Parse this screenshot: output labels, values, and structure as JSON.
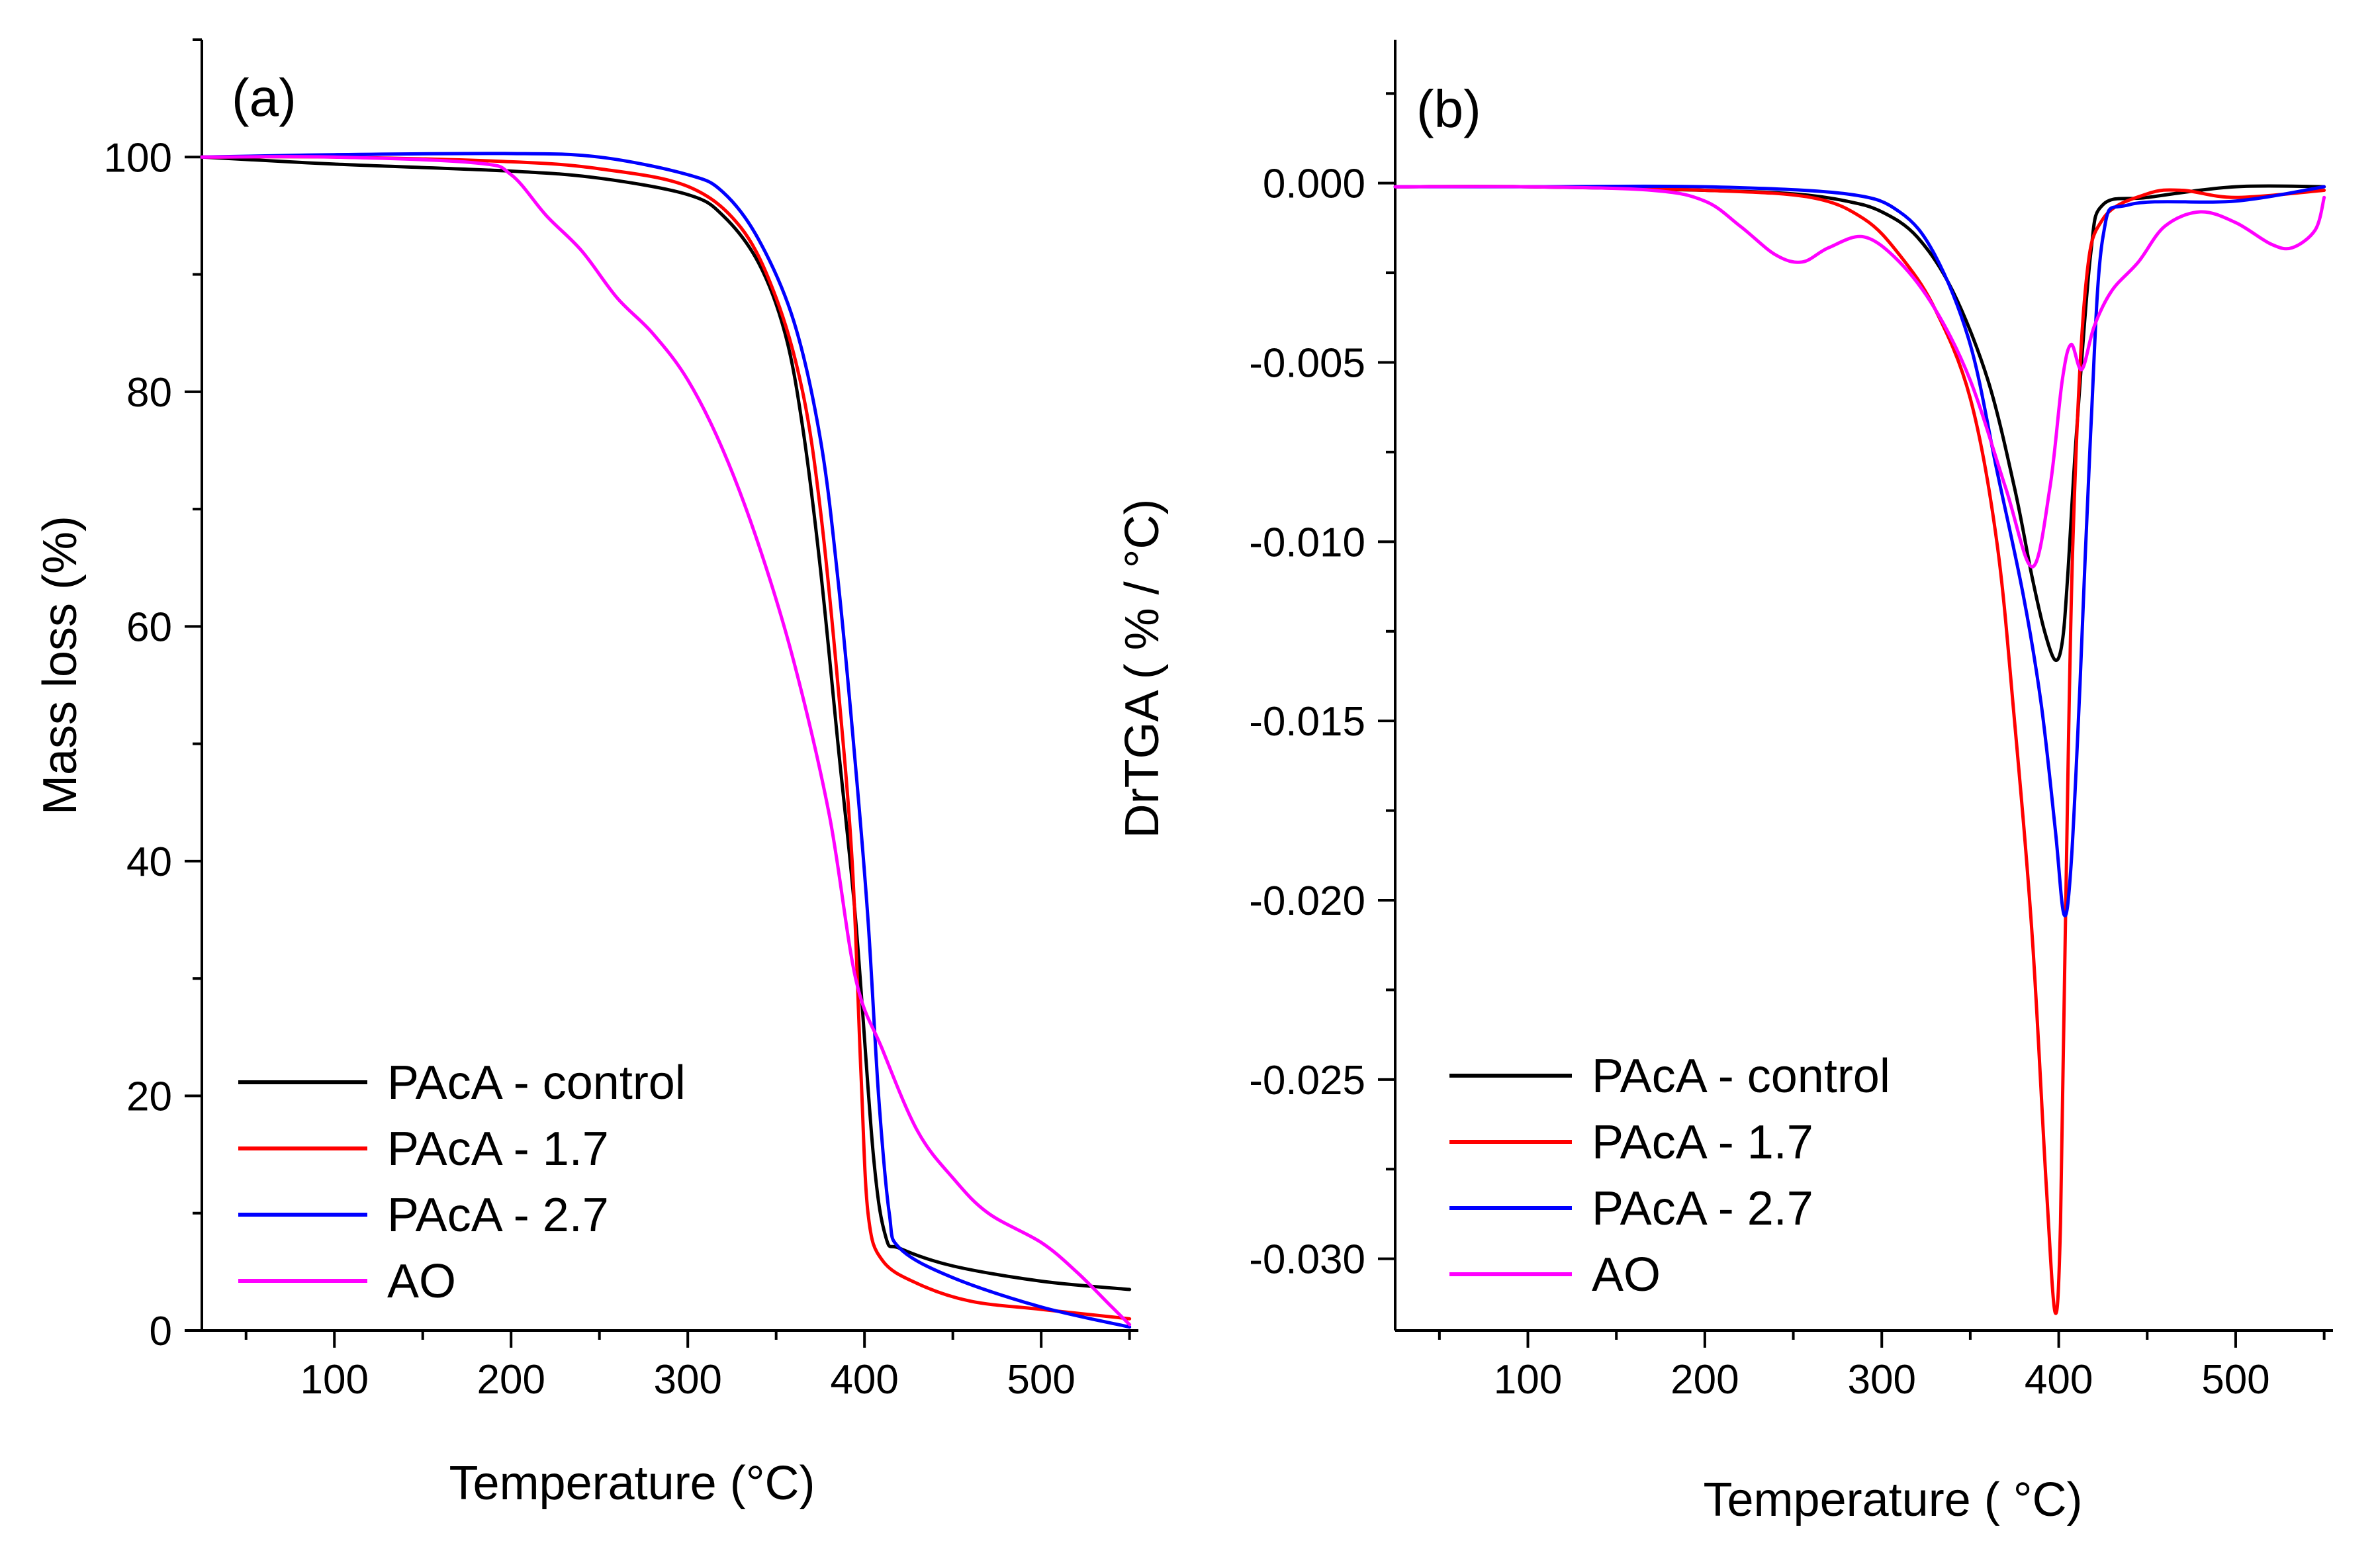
{
  "colors": {
    "PAcA - control": "#000000",
    "PAcA - 1.7": "#ff0000",
    "PAcA - 2.7": "#0000ff",
    "AO": "#ff00ff"
  },
  "chart_data": [
    {
      "type": "line",
      "panel_label": "(a)",
      "title": "",
      "xlabel": "Temperature (°C)",
      "ylabel": "Mass loss (%)",
      "xlim": [
        25,
        555
      ],
      "ylim": [
        0,
        110
      ],
      "xticks": [
        100,
        200,
        300,
        400,
        500
      ],
      "yticks": [
        0,
        20,
        40,
        60,
        80,
        100
      ],
      "x_minor_step": 50,
      "y_minor_step": 10,
      "grid": false,
      "legend_position": "bottom-left",
      "series": [
        {
          "name": "PAcA - control",
          "points": [
            [
              25,
              100
            ],
            [
              100,
              99.4
            ],
            [
              200,
              98.8
            ],
            [
              250,
              98.2
            ],
            [
              300,
              96.8
            ],
            [
              320,
              95
            ],
            [
              340,
              91
            ],
            [
              355,
              85
            ],
            [
              365,
              77
            ],
            [
              375,
              65
            ],
            [
              385,
              50
            ],
            [
              395,
              35
            ],
            [
              405,
              15
            ],
            [
              412,
              8
            ],
            [
              420,
              7
            ],
            [
              450,
              5.5
            ],
            [
              500,
              4.2
            ],
            [
              550,
              3.5
            ]
          ]
        },
        {
          "name": "PAcA - 1.7",
          "points": [
            [
              25,
              100
            ],
            [
              100,
              100
            ],
            [
              200,
              99.6
            ],
            [
              250,
              99
            ],
            [
              300,
              97.5
            ],
            [
              330,
              94
            ],
            [
              350,
              88
            ],
            [
              365,
              80
            ],
            [
              375,
              70
            ],
            [
              385,
              55
            ],
            [
              393,
              40
            ],
            [
              398,
              22
            ],
            [
              402,
              10
            ],
            [
              410,
              6
            ],
            [
              430,
              4
            ],
            [
              460,
              2.5
            ],
            [
              500,
              1.8
            ],
            [
              550,
              1
            ]
          ]
        },
        {
          "name": "PAcA - 2.7",
          "points": [
            [
              25,
              100
            ],
            [
              100,
              100.2
            ],
            [
              200,
              100.3
            ],
            [
              250,
              100
            ],
            [
              300,
              98.5
            ],
            [
              320,
              97
            ],
            [
              340,
              93
            ],
            [
              360,
              86
            ],
            [
              375,
              76
            ],
            [
              385,
              64
            ],
            [
              395,
              48
            ],
            [
              402,
              35
            ],
            [
              408,
              20
            ],
            [
              414,
              10
            ],
            [
              420,
              7
            ],
            [
              450,
              4.5
            ],
            [
              500,
              2
            ],
            [
              550,
              0.3
            ]
          ]
        },
        {
          "name": "AO",
          "points": [
            [
              25,
              100
            ],
            [
              100,
              100
            ],
            [
              180,
              99.5
            ],
            [
              200,
              98.5
            ],
            [
              220,
              95
            ],
            [
              240,
              92
            ],
            [
              260,
              88
            ],
            [
              280,
              85
            ],
            [
              300,
              81
            ],
            [
              320,
              75
            ],
            [
              340,
              67
            ],
            [
              360,
              57
            ],
            [
              380,
              44
            ],
            [
              395,
              30
            ],
            [
              410,
              24
            ],
            [
              430,
              17
            ],
            [
              450,
              13
            ],
            [
              470,
              10
            ],
            [
              500,
              7.5
            ],
            [
              520,
              5
            ],
            [
              540,
              2
            ],
            [
              550,
              0.5
            ]
          ]
        }
      ]
    },
    {
      "type": "line",
      "panel_label": "(b)",
      "title": "",
      "xlabel": "Temperature ( °C)",
      "ylabel": "DrTGA ( % / °C)",
      "xlim": [
        25,
        555
      ],
      "ylim": [
        -0.032,
        0.004
      ],
      "xticks": [
        100,
        200,
        300,
        400,
        500
      ],
      "yticks": [
        0.0,
        -0.005,
        -0.01,
        -0.015,
        -0.02,
        -0.025,
        -0.03
      ],
      "ytick_labels": [
        "0.000",
        "-0.005",
        "-0.010",
        "-0.015",
        "-0.020",
        "-0.025",
        "-0.030"
      ],
      "x_minor_step": 50,
      "y_minor_step": 0.0025,
      "grid": false,
      "legend_position": "bottom-left",
      "series": [
        {
          "name": "PAcA - control",
          "points": [
            [
              25,
              -0.0001
            ],
            [
              100,
              -0.0001
            ],
            [
              200,
              -0.0002
            ],
            [
              250,
              -0.0003
            ],
            [
              280,
              -0.0005
            ],
            [
              300,
              -0.0008
            ],
            [
              320,
              -0.0015
            ],
            [
              340,
              -0.003
            ],
            [
              360,
              -0.0055
            ],
            [
              375,
              -0.0085
            ],
            [
              385,
              -0.011
            ],
            [
              392,
              -0.0125
            ],
            [
              398,
              -0.0133
            ],
            [
              402,
              -0.0128
            ],
            [
              405,
              -0.011
            ],
            [
              410,
              -0.007
            ],
            [
              418,
              -0.002
            ],
            [
              425,
              -0.0006
            ],
            [
              450,
              -0.0004
            ],
            [
              500,
              -0.0001
            ],
            [
              550,
              -0.0001
            ]
          ]
        },
        {
          "name": "PAcA - 1.7",
          "points": [
            [
              25,
              -0.0001
            ],
            [
              100,
              -0.0001
            ],
            [
              200,
              -0.0002
            ],
            [
              260,
              -0.0004
            ],
            [
              290,
              -0.001
            ],
            [
              310,
              -0.002
            ],
            [
              330,
              -0.0035
            ],
            [
              350,
              -0.006
            ],
            [
              365,
              -0.01
            ],
            [
              375,
              -0.015
            ],
            [
              385,
              -0.021
            ],
            [
              393,
              -0.028
            ],
            [
              398,
              -0.0315
            ],
            [
              401,
              -0.029
            ],
            [
              404,
              -0.02
            ],
            [
              408,
              -0.01
            ],
            [
              415,
              -0.003
            ],
            [
              425,
              -0.001
            ],
            [
              450,
              -0.0003
            ],
            [
              470,
              -0.0002
            ],
            [
              500,
              -0.0004
            ],
            [
              550,
              -0.0002
            ]
          ]
        },
        {
          "name": "PAcA - 2.7",
          "points": [
            [
              25,
              -0.0001
            ],
            [
              100,
              -0.0001
            ],
            [
              200,
              -0.0001
            ],
            [
              280,
              -0.0003
            ],
            [
              310,
              -0.0008
            ],
            [
              330,
              -0.002
            ],
            [
              350,
              -0.0045
            ],
            [
              365,
              -0.008
            ],
            [
              380,
              -0.0115
            ],
            [
              390,
              -0.0145
            ],
            [
              398,
              -0.018
            ],
            [
              403,
              -0.0204
            ],
            [
              407,
              -0.019
            ],
            [
              412,
              -0.014
            ],
            [
              418,
              -0.007
            ],
            [
              425,
              -0.0015
            ],
            [
              440,
              -0.0006
            ],
            [
              500,
              -0.0005
            ],
            [
              550,
              -0.0001
            ]
          ]
        },
        {
          "name": "AO",
          "points": [
            [
              25,
              -0.0001
            ],
            [
              100,
              -0.0001
            ],
            [
              170,
              -0.0002
            ],
            [
              200,
              -0.0005
            ],
            [
              220,
              -0.0012
            ],
            [
              240,
              -0.002
            ],
            [
              255,
              -0.0022
            ],
            [
              270,
              -0.0018
            ],
            [
              290,
              -0.0015
            ],
            [
              310,
              -0.0022
            ],
            [
              330,
              -0.0035
            ],
            [
              350,
              -0.0055
            ],
            [
              370,
              -0.0085
            ],
            [
              385,
              -0.0107
            ],
            [
              395,
              -0.0085
            ],
            [
              402,
              -0.0055
            ],
            [
              407,
              -0.0045
            ],
            [
              413,
              -0.0052
            ],
            [
              420,
              -0.004
            ],
            [
              430,
              -0.003
            ],
            [
              445,
              -0.0022
            ],
            [
              460,
              -0.0012
            ],
            [
              480,
              -0.0008
            ],
            [
              500,
              -0.0011
            ],
            [
              520,
              -0.0017
            ],
            [
              532,
              -0.0018
            ],
            [
              545,
              -0.0013
            ],
            [
              550,
              -0.0004
            ]
          ]
        }
      ]
    }
  ]
}
